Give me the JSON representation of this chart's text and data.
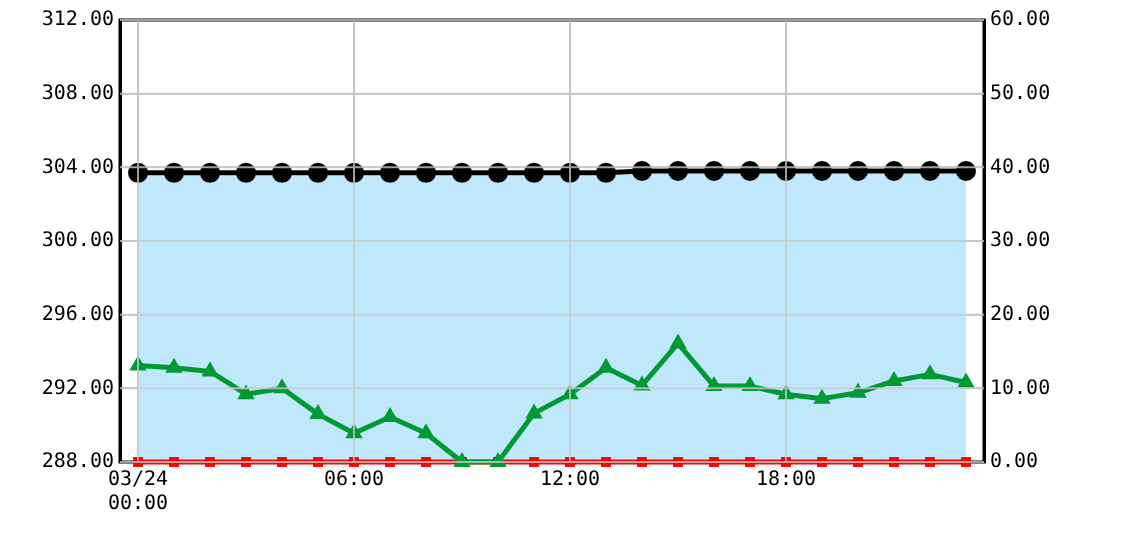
{
  "chart_data": {
    "type": "line",
    "x": [
      0,
      1,
      2,
      3,
      4,
      5,
      6,
      7,
      8,
      9,
      10,
      11,
      12,
      13,
      14,
      15,
      16,
      17,
      18,
      19,
      20,
      21,
      22,
      23
    ],
    "xlim": [
      -0.5,
      23.5
    ],
    "xticks": [
      {
        "value": 0,
        "label": "03/24\n00:00"
      },
      {
        "value": 6,
        "label": "06:00"
      },
      {
        "value": 12,
        "label": "12:00"
      },
      {
        "value": 18,
        "label": "18:00"
      }
    ],
    "ylim": [
      288,
      312
    ],
    "yticks": [
      {
        "value": 288,
        "label": "288.00"
      },
      {
        "value": 292,
        "label": "292.00"
      },
      {
        "value": 296,
        "label": "296.00"
      },
      {
        "value": 300,
        "label": "300.00"
      },
      {
        "value": 304,
        "label": "304.00"
      },
      {
        "value": 308,
        "label": "308.00"
      },
      {
        "value": 312,
        "label": "312.00"
      }
    ],
    "y2lim": [
      0,
      60
    ],
    "y2ticks": [
      {
        "value": 0,
        "label": "0.00"
      },
      {
        "value": 10,
        "label": "10.00"
      },
      {
        "value": 20,
        "label": "20.00"
      },
      {
        "value": 30,
        "label": "30.00"
      },
      {
        "value": 40,
        "label": "40.00"
      },
      {
        "value": 50,
        "label": "50.00"
      },
      {
        "value": 60,
        "label": "60.00"
      }
    ],
    "series": [
      {
        "type": "area",
        "color": "#c0e8fc",
        "colors": [
          "#000000",
          "#000000",
          "#000000",
          "#000000",
          "#000000",
          "#000000",
          "#000000",
          "#000000",
          "#000000",
          "#000000",
          "#000000",
          "#000000",
          "#000000",
          "#000000",
          "#000000",
          "#000000",
          "#000000",
          "#000000",
          "#000000",
          "#000000",
          "#000000",
          "#000000",
          "#000000",
          "#000000"
        ],
        "marker": "circle",
        "values": [
          303.7,
          303.7,
          303.7,
          303.7,
          303.7,
          303.7,
          303.7,
          303.7,
          303.7,
          303.7,
          303.7,
          303.7,
          303.7,
          303.7,
          303.8,
          303.8,
          303.8,
          303.8,
          303.8,
          303.8,
          303.8,
          303.8,
          303.8,
          303.8
        ]
      },
      {
        "color": "#009933",
        "marker": "triangle",
        "axis": "y2",
        "values": [
          13.1,
          12.8,
          12.3,
          9.2,
          10.0,
          6.5,
          3.9,
          6.1,
          3.9,
          0,
          0,
          6.6,
          9.2,
          12.8,
          10.4,
          16.1,
          10.3,
          10.3,
          9.2,
          8.6,
          9.4,
          11.0,
          11.9,
          10.8
        ]
      },
      {
        "color": "#ff0000",
        "marker": "square",
        "axis": "y2",
        "values": [
          0,
          0,
          0,
          0,
          0,
          0,
          0,
          0,
          0,
          0,
          0,
          0,
          0,
          0,
          0,
          0,
          0,
          0,
          0,
          0,
          0,
          0,
          0,
          0
        ]
      }
    ],
    "grid": true,
    "legend": false
  }
}
